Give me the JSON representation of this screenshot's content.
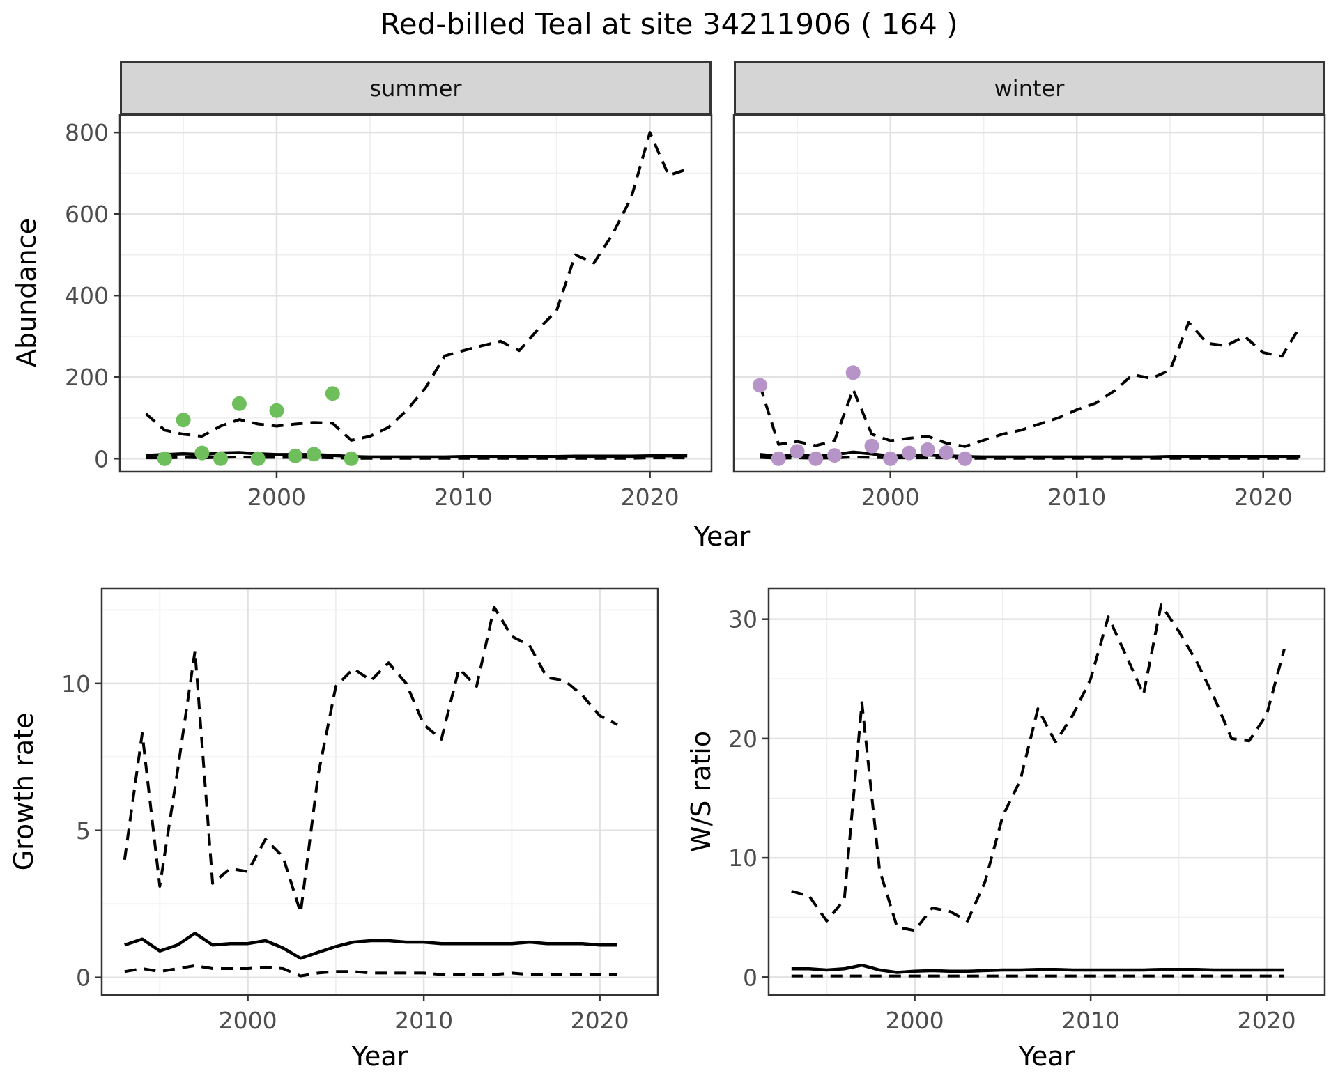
{
  "title": "Red-billed Teal at site 34211906 ( 164 )",
  "style": {
    "line": "#000000",
    "summer_point": "#6ebe5c",
    "winter_point": "#b694c7",
    "grid_major": "#e2e2e2",
    "grid_minor": "#efefef",
    "strip_fill": "#d5d5d5",
    "strip_border": "#353535",
    "panel_border": "#333333",
    "tick": "#333333",
    "tick_label": "#4d4d4d"
  },
  "chart_data": [
    {
      "id": "abundance-summer",
      "type": "line",
      "facet": "summer",
      "ylabel": "Abundance",
      "xlabel": "Year",
      "xlim": [
        1991.6,
        2023.3
      ],
      "ylim": [
        -32,
        843
      ],
      "xticks": [
        2000,
        2010,
        2020
      ],
      "yticks": [
        0,
        200,
        400,
        600,
        800
      ],
      "xminor": [
        1995,
        2005,
        2015
      ],
      "yminor": [
        100,
        300,
        500,
        700
      ],
      "x": [
        1993,
        1994,
        1995,
        1996,
        1997,
        1998,
        1999,
        2000,
        2001,
        2002,
        2003,
        2004,
        2005,
        2006,
        2007,
        2008,
        2009,
        2010,
        2011,
        2012,
        2013,
        2014,
        2015,
        2016,
        2017,
        2018,
        2019,
        2020,
        2021,
        2022
      ],
      "series": [
        {
          "name": "upper-dashed",
          "style": "dashed",
          "values": [
            110,
            70,
            60,
            55,
            80,
            96,
            85,
            80,
            85,
            89,
            87,
            45,
            55,
            77,
            120,
            175,
            252,
            265,
            277,
            288,
            265,
            317,
            363,
            500,
            480,
            551,
            640,
            800,
            695,
            710
          ]
        },
        {
          "name": "median-solid",
          "style": "solid",
          "values": [
            8,
            10,
            12,
            10,
            14,
            15,
            12,
            10,
            10,
            10,
            8,
            5,
            4,
            4,
            4,
            4,
            4,
            5,
            5,
            5,
            5,
            5,
            5,
            6,
            6,
            6,
            6,
            7,
            7,
            7
          ]
        },
        {
          "name": "lower-dashed",
          "style": "dashed",
          "values": [
            2,
            2,
            3,
            2,
            3,
            4,
            3,
            3,
            3,
            3,
            2,
            1,
            1,
            1,
            1,
            1,
            1,
            1,
            1,
            1,
            1,
            1,
            1,
            1,
            1,
            1,
            1,
            2,
            2,
            2
          ]
        }
      ],
      "points": {
        "name": "observed-summer-count",
        "color": "#6ebe5c",
        "x": [
          1994,
          1995,
          1996,
          1997,
          1998,
          1999,
          2000,
          2001,
          2002,
          2003,
          2004
        ],
        "values": [
          0,
          95,
          14,
          0,
          135,
          0,
          118,
          7,
          11,
          160,
          0
        ]
      }
    },
    {
      "id": "abundance-winter",
      "type": "line",
      "facet": "winter",
      "ylabel": "Abundance",
      "xlabel": "Year",
      "xlim": [
        1991.6,
        2023.3
      ],
      "ylim": [
        -32,
        843
      ],
      "xticks": [
        2000,
        2010,
        2020
      ],
      "yticks": [
        0,
        200,
        400,
        600,
        800
      ],
      "xminor": [
        1995,
        2005,
        2015
      ],
      "yminor": [
        100,
        300,
        500,
        700
      ],
      "x": [
        1993,
        1994,
        1995,
        1996,
        1997,
        1998,
        1999,
        2000,
        2001,
        2002,
        2003,
        2004,
        2005,
        2006,
        2007,
        2008,
        2009,
        2010,
        2011,
        2012,
        2013,
        2014,
        2015,
        2016,
        2017,
        2018,
        2019,
        2020,
        2021,
        2022
      ],
      "series": [
        {
          "name": "upper-dashed",
          "style": "dashed",
          "values": [
            180,
            35,
            42,
            32,
            44,
            170,
            60,
            44,
            50,
            55,
            38,
            30,
            45,
            60,
            70,
            85,
            100,
            120,
            136,
            166,
            206,
            197,
            217,
            334,
            283,
            277,
            300,
            260,
            251,
            326
          ]
        },
        {
          "name": "median-solid",
          "style": "solid",
          "values": [
            10,
            6,
            8,
            6,
            10,
            16,
            12,
            6,
            7,
            9,
            7,
            5,
            4,
            4,
            4,
            4,
            4,
            4,
            4,
            4,
            4,
            4,
            5,
            5,
            5,
            5,
            5,
            5,
            5,
            5
          ]
        },
        {
          "name": "lower-dashed",
          "style": "dashed",
          "values": [
            3,
            1,
            2,
            1,
            2,
            4,
            3,
            2,
            2,
            2,
            2,
            1,
            1,
            1,
            1,
            1,
            1,
            1,
            1,
            1,
            1,
            1,
            1,
            1,
            1,
            1,
            1,
            1,
            1,
            1
          ]
        }
      ],
      "points": {
        "name": "observed-winter-count",
        "color": "#b694c7",
        "x": [
          1993,
          1994,
          1995,
          1996,
          1997,
          1998,
          1999,
          2000,
          2001,
          2002,
          2003,
          2004
        ],
        "values": [
          180,
          0,
          18,
          0,
          8,
          211,
          31,
          0,
          14,
          22,
          15,
          0
        ]
      }
    },
    {
      "id": "growth-rate",
      "type": "line",
      "facet": null,
      "ylabel": "Growth rate",
      "xlabel": "Year",
      "xlim": [
        1991.7,
        2023.3
      ],
      "ylim": [
        -0.6,
        13.22
      ],
      "xticks": [
        2000,
        2010,
        2020
      ],
      "yticks": [
        0,
        5,
        10
      ],
      "xminor": [
        1995,
        2005,
        2015
      ],
      "yminor": [
        2.5,
        7.5,
        12.5
      ],
      "x": [
        1993,
        1994,
        1995,
        1996,
        1997,
        1998,
        1999,
        2000,
        2001,
        2002,
        2003,
        2004,
        2005,
        2006,
        2007,
        2008,
        2009,
        2010,
        2011,
        2012,
        2013,
        2014,
        2015,
        2016,
        2017,
        2018,
        2019,
        2020,
        2021
      ],
      "series": [
        {
          "name": "upper-dashed",
          "style": "dashed",
          "values": [
            4.0,
            8.3,
            3.1,
            7.0,
            11.1,
            3.2,
            3.7,
            3.6,
            4.7,
            4.1,
            2.2,
            6.9,
            9.9,
            10.5,
            10.1,
            10.7,
            10.0,
            8.6,
            8.1,
            10.5,
            9.9,
            12.6,
            11.6,
            11.3,
            10.2,
            10.1,
            9.6,
            8.9,
            8.6
          ]
        },
        {
          "name": "median-solid",
          "style": "solid",
          "values": [
            1.1,
            1.3,
            0.9,
            1.1,
            1.5,
            1.1,
            1.15,
            1.15,
            1.25,
            1.0,
            0.65,
            0.85,
            1.05,
            1.2,
            1.25,
            1.25,
            1.2,
            1.2,
            1.15,
            1.15,
            1.15,
            1.15,
            1.15,
            1.2,
            1.15,
            1.15,
            1.15,
            1.1,
            1.1
          ]
        },
        {
          "name": "lower-dashed",
          "style": "dashed",
          "values": [
            0.2,
            0.3,
            0.2,
            0.3,
            0.4,
            0.3,
            0.3,
            0.3,
            0.35,
            0.3,
            0.05,
            0.15,
            0.2,
            0.2,
            0.15,
            0.15,
            0.15,
            0.15,
            0.1,
            0.1,
            0.1,
            0.1,
            0.15,
            0.1,
            0.1,
            0.1,
            0.1,
            0.1,
            0.1
          ]
        }
      ],
      "points": null
    },
    {
      "id": "ws-ratio",
      "type": "line",
      "facet": null,
      "ylabel": "W/S ratio",
      "xlabel": "Year",
      "xlim": [
        1991.7,
        2023.3
      ],
      "ylim": [
        -1.5,
        32.55
      ],
      "xticks": [
        2000,
        2010,
        2020
      ],
      "yticks": [
        0,
        10,
        20,
        30
      ],
      "xminor": [
        1995,
        2005,
        2015
      ],
      "yminor": [
        5,
        15,
        25
      ],
      "x": [
        1993,
        1994,
        1995,
        1996,
        1997,
        1998,
        1999,
        2000,
        2001,
        2002,
        2003,
        2004,
        2005,
        2006,
        2007,
        2008,
        2009,
        2010,
        2011,
        2012,
        2013,
        2014,
        2015,
        2016,
        2017,
        2018,
        2019,
        2020,
        2021
      ],
      "series": [
        {
          "name": "upper-dashed",
          "style": "dashed",
          "values": [
            7.2,
            6.8,
            4.7,
            6.5,
            23.0,
            9.0,
            4.2,
            3.9,
            5.8,
            5.5,
            4.7,
            8.0,
            13.5,
            16.5,
            22.5,
            19.7,
            22.0,
            25.0,
            30.2,
            27.0,
            23.7,
            31.2,
            29.0,
            26.5,
            23.5,
            20.0,
            19.8,
            22.0,
            27.5
          ]
        },
        {
          "name": "median-solid",
          "style": "solid",
          "values": [
            0.7,
            0.7,
            0.6,
            0.7,
            1.0,
            0.6,
            0.4,
            0.5,
            0.55,
            0.5,
            0.5,
            0.55,
            0.6,
            0.6,
            0.65,
            0.65,
            0.6,
            0.6,
            0.6,
            0.6,
            0.6,
            0.65,
            0.65,
            0.65,
            0.6,
            0.6,
            0.6,
            0.6,
            0.6
          ]
        },
        {
          "name": "lower-dashed",
          "style": "dashed",
          "values": [
            0.1,
            0.1,
            0.1,
            0.1,
            0.1,
            0.1,
            0.1,
            0.1,
            0.1,
            0.1,
            0.1,
            0.1,
            0.1,
            0.1,
            0.1,
            0.1,
            0.1,
            0.1,
            0.1,
            0.1,
            0.1,
            0.1,
            0.1,
            0.1,
            0.1,
            0.1,
            0.1,
            0.1,
            0.1
          ]
        }
      ],
      "points": null
    }
  ]
}
